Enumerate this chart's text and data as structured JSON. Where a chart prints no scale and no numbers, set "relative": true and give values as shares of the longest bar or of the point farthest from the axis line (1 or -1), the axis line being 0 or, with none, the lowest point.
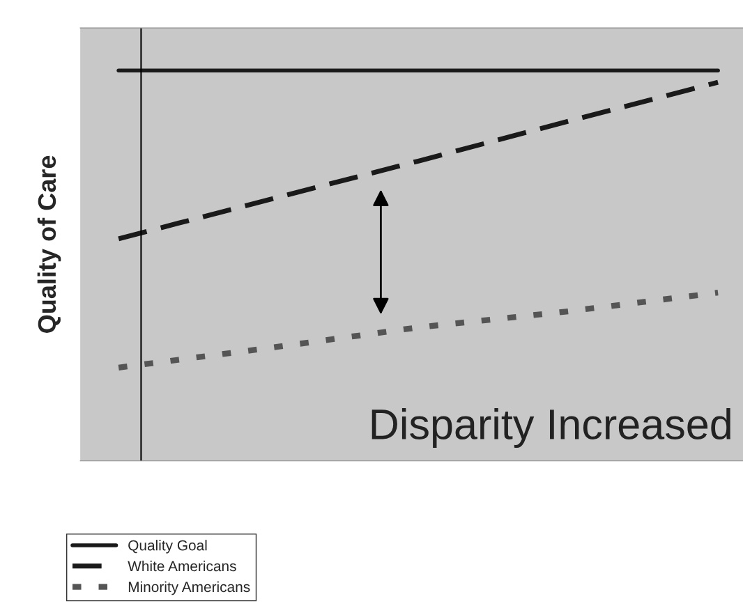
{
  "chart_data": {
    "type": "line",
    "relative": true,
    "ylabel": "Quality of Care",
    "categories": [
      null,
      null,
      null,
      null,
      null
    ],
    "series": [
      {
        "name": "Quality Goal",
        "color": "#1a1a1a",
        "line_style": "solid",
        "values": [
          1,
          1,
          1,
          1,
          1
        ]
      },
      {
        "name": "White Americans",
        "color": "#1a1a1a",
        "line_style": "dashed",
        "values": [
          0.569,
          0.669,
          0.768,
          0.87,
          0.97
        ]
      },
      {
        "name": "Minority Americans",
        "color": "#555555",
        "line_style": "dotted",
        "values": [
          0.239,
          0.289,
          0.342,
          0.383,
          0.431
        ]
      }
    ],
    "annotations": [
      "Disparity Increased"
    ],
    "legend": "bottom left",
    "marker": "none"
  }
}
